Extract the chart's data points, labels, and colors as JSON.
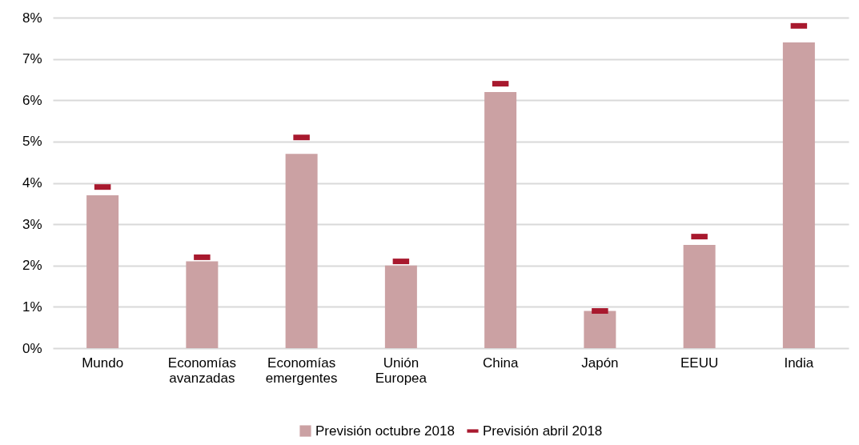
{
  "chart_data": {
    "type": "bar",
    "categories": [
      "Mundo",
      "Economías avanzadas",
      "Economías emergentes",
      "Unión Europea",
      "China",
      "Japón",
      "EEUU",
      "India"
    ],
    "series": [
      {
        "name": "Previsión octubre 2018",
        "color": "#cba1a3",
        "values": [
          3.7,
          2.1,
          4.7,
          2.0,
          6.2,
          0.9,
          2.5,
          7.4
        ]
      },
      {
        "name": "Previsión abril 2018",
        "type": "scatter",
        "color": "#a8192e",
        "values": [
          3.9,
          2.2,
          5.1,
          2.1,
          6.4,
          0.9,
          2.7,
          7.8
        ]
      }
    ],
    "ylim": [
      0,
      8
    ],
    "yticks": [
      {
        "value": 0,
        "label": "0%"
      },
      {
        "value": 1,
        "label": "1%"
      },
      {
        "value": 2,
        "label": "2%"
      },
      {
        "value": 3,
        "label": "3%"
      },
      {
        "value": 4,
        "label": "4%"
      },
      {
        "value": 5,
        "label": "5%"
      },
      {
        "value": 6,
        "label": "6%"
      },
      {
        "value": 7,
        "label": "7%"
      },
      {
        "value": 8,
        "label": "8%"
      }
    ],
    "grid": "y",
    "legend": "bottom"
  }
}
